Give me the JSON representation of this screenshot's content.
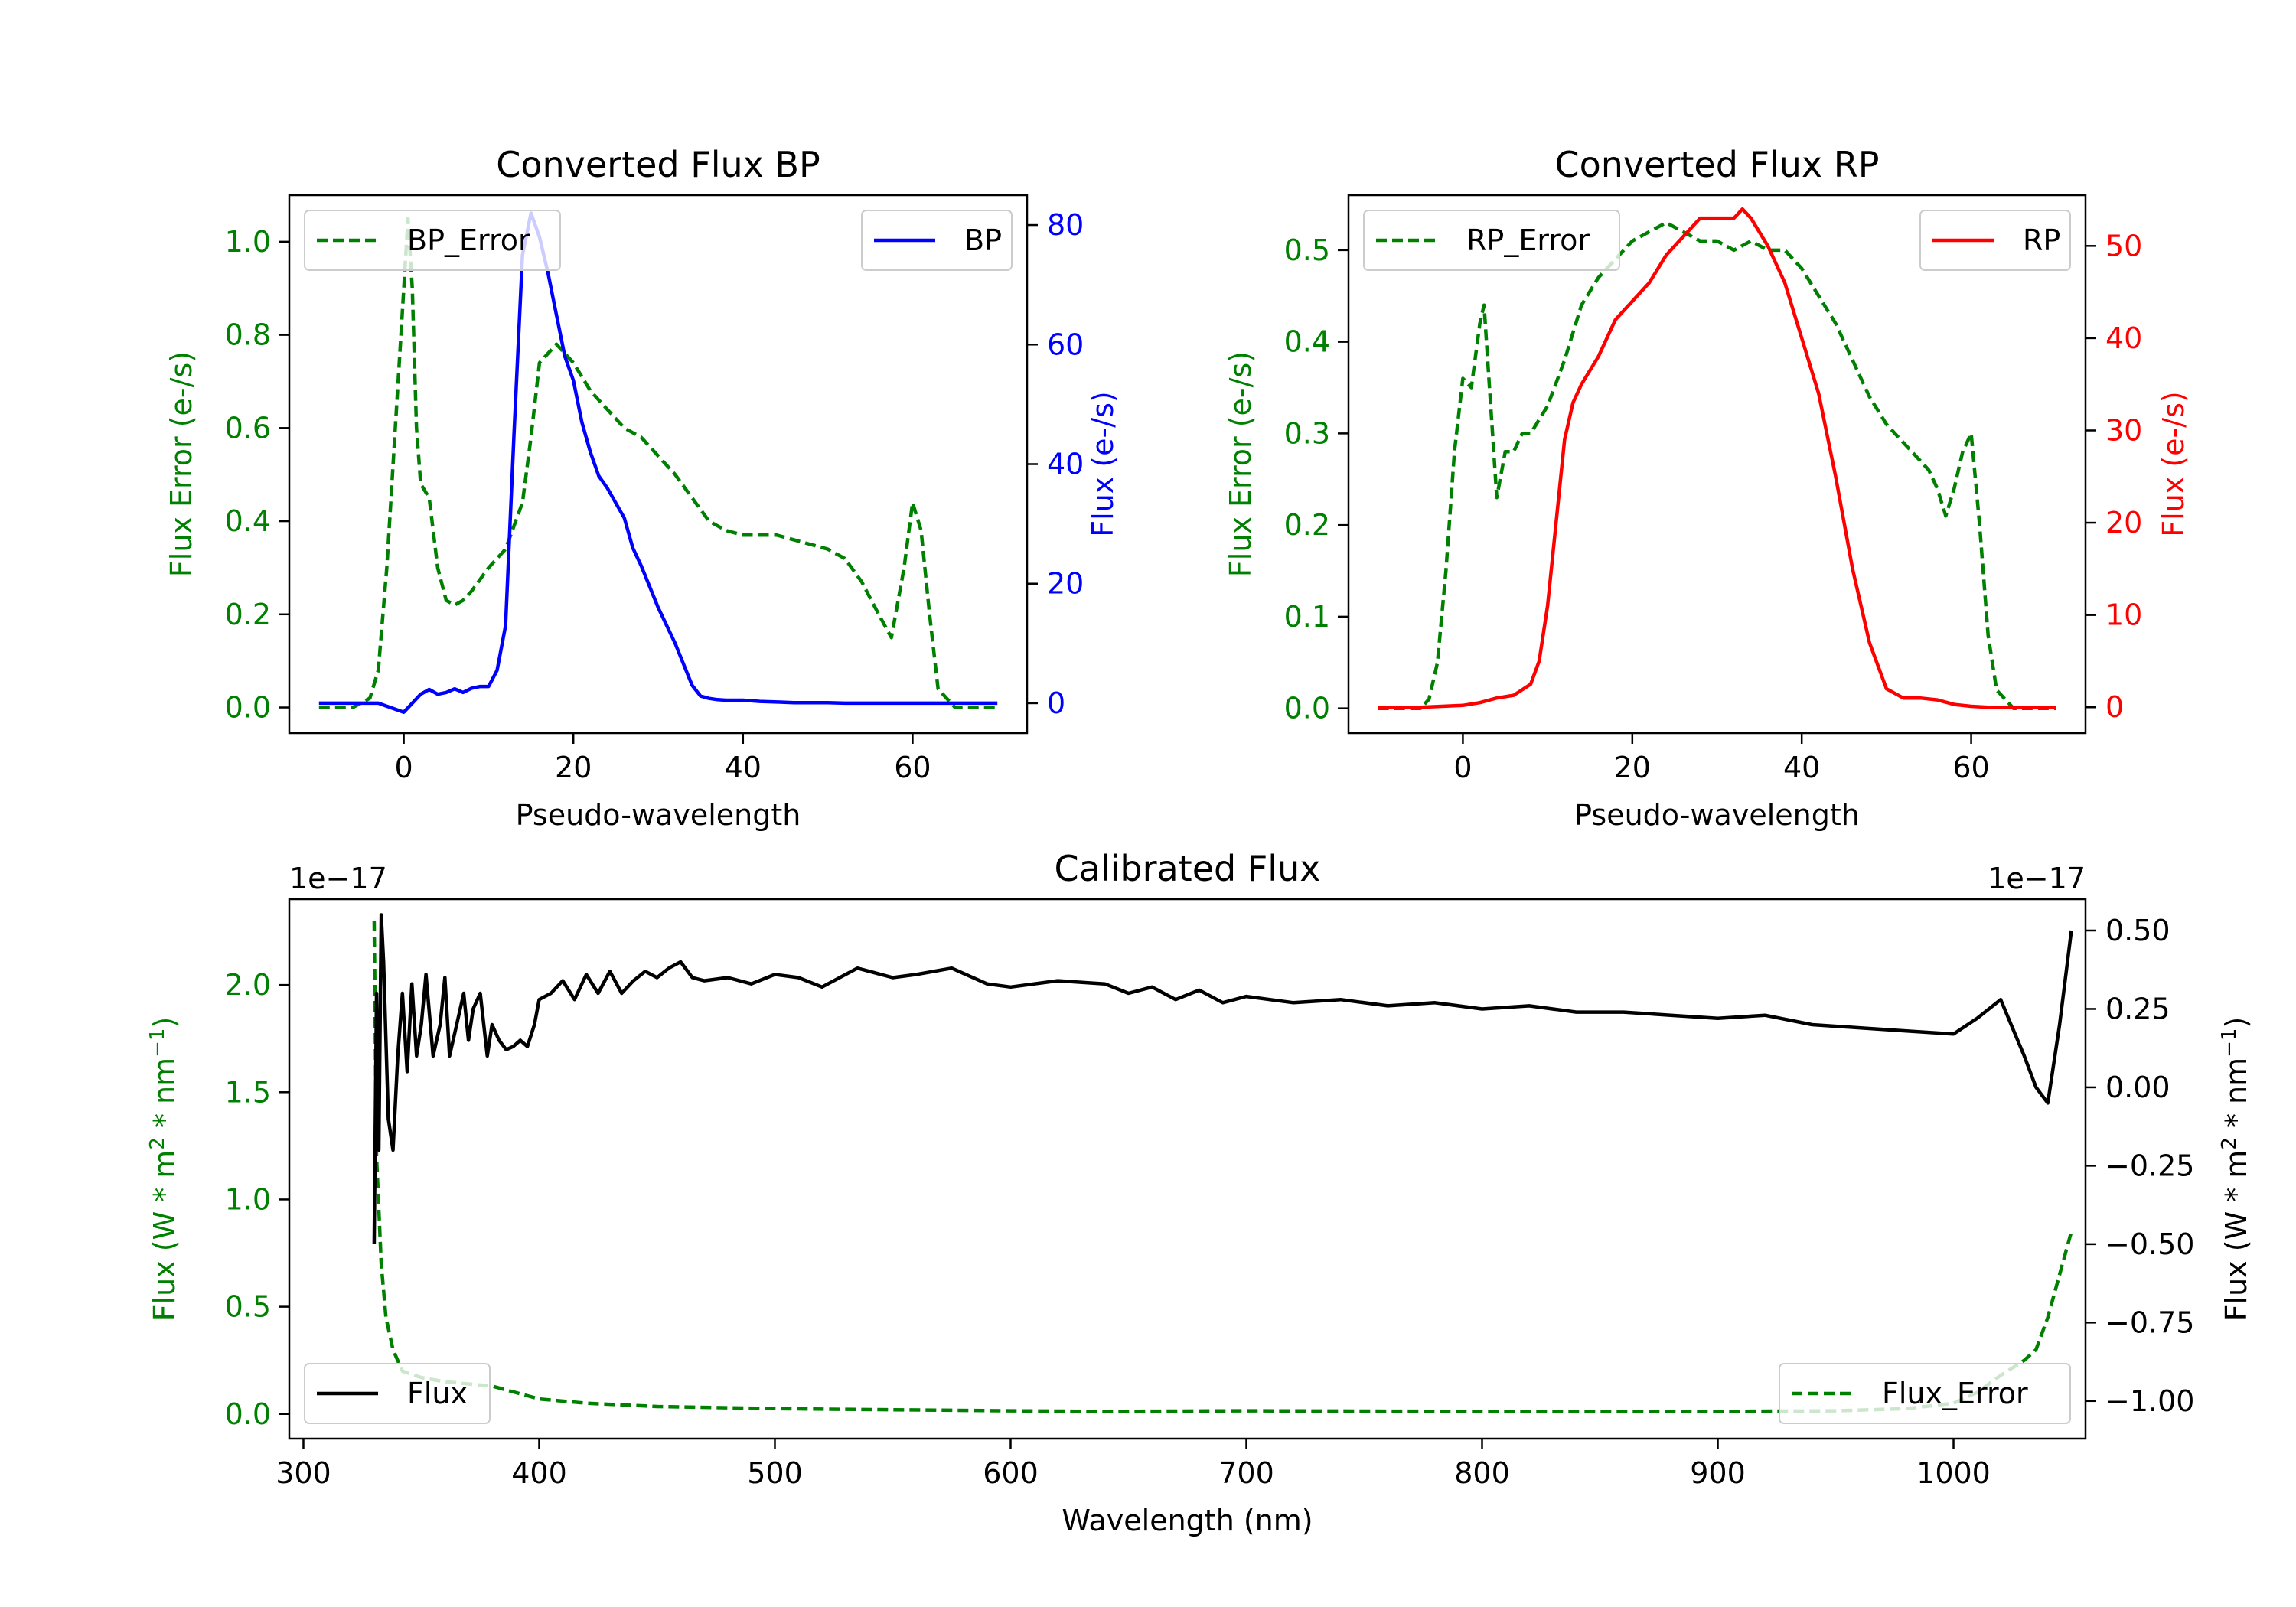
{
  "colors": {
    "green": "#008000",
    "blue": "#0000ff",
    "red": "#ff0000",
    "black": "#000000"
  },
  "chart_data": [
    {
      "type": "line",
      "title": "Converted Flux BP",
      "xlabel": "Pseudo-wavelength",
      "ylabel_left": "Flux Error (e-/s)",
      "ylabel_right": "Flux (e-/s)",
      "xlim": [
        -13.5,
        73.5
      ],
      "ylim_left": [
        -0.055,
        1.1
      ],
      "ylim_right": [
        -5,
        85
      ],
      "xticks": [
        0,
        20,
        40,
        60
      ],
      "yticks_left": [
        0.0,
        0.2,
        0.4,
        0.6,
        0.8,
        1.0
      ],
      "yticks_left_labels": [
        "0.0",
        "0.2",
        "0.4",
        "0.6",
        "0.8",
        "1.0"
      ],
      "yticks_right": [
        0,
        20,
        40,
        60,
        80
      ],
      "yticks_right_labels": [
        "0",
        "20",
        "40",
        "60",
        "80"
      ],
      "legend": [
        {
          "name": "BP_Error",
          "position": "upper-left"
        },
        {
          "name": "BP",
          "position": "upper-right"
        }
      ],
      "series": [
        {
          "name": "BP_Error",
          "axis": "left",
          "style": "dashed",
          "color": "#008000",
          "x": [
            -10,
            -6,
            -4,
            -3,
            -2,
            -1,
            0,
            0.5,
            1,
            1.5,
            2,
            3,
            4,
            5,
            6,
            7,
            8,
            10,
            12,
            14,
            15,
            16,
            18,
            20,
            22,
            24,
            26,
            28,
            30,
            32,
            34,
            36,
            38,
            40,
            42,
            44,
            46,
            48,
            50,
            52,
            54,
            56,
            57.5,
            59,
            60,
            61,
            62,
            63,
            65,
            68,
            70
          ],
          "values": [
            0.0,
            0.0,
            0.02,
            0.08,
            0.3,
            0.6,
            0.9,
            1.05,
            0.9,
            0.6,
            0.48,
            0.45,
            0.3,
            0.23,
            0.22,
            0.23,
            0.25,
            0.3,
            0.34,
            0.44,
            0.58,
            0.74,
            0.78,
            0.74,
            0.68,
            0.64,
            0.6,
            0.58,
            0.54,
            0.5,
            0.45,
            0.4,
            0.38,
            0.37,
            0.37,
            0.37,
            0.36,
            0.35,
            0.34,
            0.32,
            0.27,
            0.2,
            0.15,
            0.3,
            0.44,
            0.38,
            0.2,
            0.04,
            0.0,
            0.0,
            0.0
          ]
        },
        {
          "name": "BP",
          "axis": "right",
          "style": "solid",
          "color": "#0000ff",
          "x": [
            -10,
            -6,
            -3,
            -2,
            0,
            1,
            2,
            3,
            4,
            5,
            6,
            7,
            8,
            9,
            10,
            11,
            12,
            13,
            14,
            15,
            16,
            17,
            18,
            19,
            20,
            21,
            22,
            23,
            24,
            26,
            27,
            28,
            30,
            32,
            34,
            35,
            36,
            37,
            38,
            40,
            42,
            44,
            46,
            48,
            50,
            52,
            54,
            56,
            58,
            60,
            65,
            70
          ],
          "values": [
            0,
            0,
            0,
            -0.5,
            -1.5,
            0,
            1.5,
            2.3,
            1.5,
            1.8,
            2.4,
            1.8,
            2.5,
            2.8,
            2.8,
            5.5,
            13,
            45,
            75,
            82,
            78,
            72,
            65,
            58,
            54,
            47,
            42,
            38,
            36,
            31,
            26,
            23,
            16,
            10,
            3,
            1.2,
            0.8,
            0.6,
            0.5,
            0.5,
            0.3,
            0.2,
            0.1,
            0.1,
            0.1,
            0.0,
            0.0,
            0.0,
            0.0,
            0.0,
            0.0,
            0.0
          ]
        }
      ]
    },
    {
      "type": "line",
      "title": "Converted Flux RP",
      "xlabel": "Pseudo-wavelength",
      "ylabel_left": "Flux Error (e-/s)",
      "ylabel_right": "Flux (e-/s)",
      "xlim": [
        -13.5,
        73.5
      ],
      "ylim_left": [
        -0.027,
        0.56
      ],
      "ylim_right": [
        -2.8,
        55.5
      ],
      "xticks": [
        0,
        20,
        40,
        60
      ],
      "yticks_left": [
        0.0,
        0.1,
        0.2,
        0.3,
        0.4,
        0.5
      ],
      "yticks_left_labels": [
        "0.0",
        "0.1",
        "0.2",
        "0.3",
        "0.4",
        "0.5"
      ],
      "yticks_right": [
        0,
        10,
        20,
        30,
        40,
        50
      ],
      "yticks_right_labels": [
        "0",
        "10",
        "20",
        "30",
        "40",
        "50"
      ],
      "legend": [
        {
          "name": "RP_Error",
          "position": "upper-left"
        },
        {
          "name": "RP",
          "position": "upper-right"
        }
      ],
      "series": [
        {
          "name": "RP_Error",
          "axis": "left",
          "style": "dashed",
          "color": "#008000",
          "x": [
            -10,
            -5,
            -4,
            -3,
            -2,
            -1,
            0,
            1,
            2,
            2.5,
            3,
            3.5,
            4,
            5,
            6,
            7,
            8,
            10,
            12,
            14,
            16,
            18,
            20,
            22,
            24,
            25,
            26,
            28,
            30,
            32,
            34,
            36,
            38,
            40,
            42,
            44,
            46,
            48,
            50,
            52,
            54,
            55,
            56,
            57,
            58,
            59,
            60,
            61,
            62,
            63,
            65,
            70
          ],
          "values": [
            0.0,
            0.0,
            0.01,
            0.05,
            0.15,
            0.28,
            0.36,
            0.35,
            0.42,
            0.44,
            0.37,
            0.3,
            0.23,
            0.28,
            0.28,
            0.3,
            0.3,
            0.33,
            0.38,
            0.44,
            0.47,
            0.49,
            0.51,
            0.52,
            0.53,
            0.525,
            0.52,
            0.51,
            0.51,
            0.5,
            0.51,
            0.5,
            0.5,
            0.48,
            0.45,
            0.42,
            0.38,
            0.34,
            0.31,
            0.29,
            0.27,
            0.26,
            0.24,
            0.21,
            0.24,
            0.28,
            0.3,
            0.2,
            0.08,
            0.02,
            0.0,
            0.0
          ]
        },
        {
          "name": "RP",
          "axis": "right",
          "style": "solid",
          "color": "#ff0000",
          "x": [
            -10,
            -5,
            0,
            2,
            4,
            6,
            8,
            9,
            10,
            11,
            12,
            13,
            14,
            16,
            18,
            20,
            22,
            24,
            26,
            28,
            30,
            32,
            33,
            34,
            36,
            38,
            40,
            42,
            44,
            46,
            48,
            50,
            52,
            54,
            56,
            58,
            60,
            62,
            65,
            70
          ],
          "values": [
            0,
            0,
            0.2,
            0.5,
            1,
            1.3,
            2.5,
            5,
            11,
            20,
            29,
            33,
            35,
            38,
            42,
            44,
            46,
            49,
            51,
            53,
            53,
            53,
            54,
            53,
            50,
            46,
            40,
            34,
            25,
            15,
            7,
            2,
            1,
            1,
            0.8,
            0.3,
            0.1,
            0.0,
            0.0,
            0.0
          ]
        }
      ]
    },
    {
      "type": "line",
      "title": "Calibrated Flux",
      "xlabel": "Wavelength (nm)",
      "ylabel_left": "Flux (W * m",
      "ylabel_right": "Flux (W * m",
      "unit_tail_a": " * nm",
      "unit_exp_2": "2",
      "unit_exp_m1": "−1",
      "close_paren": ")",
      "offset_left": "1e−17",
      "offset_right": "1e−17",
      "xlim": [
        294,
        1056
      ],
      "ylim_left": [
        -0.115,
        2.4
      ],
      "ylim_right": [
        -1.12,
        0.6
      ],
      "xticks": [
        300,
        400,
        500,
        600,
        700,
        800,
        900,
        1000
      ],
      "yticks_left": [
        0.0,
        0.5,
        1.0,
        1.5,
        2.0
      ],
      "yticks_left_labels": [
        "0.0",
        "0.5",
        "1.0",
        "1.5",
        "2.0"
      ],
      "yticks_right": [
        -1.0,
        -0.75,
        -0.5,
        -0.25,
        0.0,
        0.25,
        0.5
      ],
      "yticks_right_labels": [
        "−1.00",
        "−0.75",
        "−0.50",
        "−0.25",
        "0.00",
        "0.25",
        "0.50"
      ],
      "legend": [
        {
          "name": "Flux",
          "position": "lower-left"
        },
        {
          "name": "Flux_Error",
          "position": "lower-right"
        }
      ],
      "series": [
        {
          "name": "Flux_Error",
          "axis": "left",
          "style": "dashed",
          "color": "#008000",
          "x": [
            330,
            331,
            333,
            335,
            338,
            342,
            350,
            360,
            370,
            380,
            390,
            400,
            420,
            450,
            500,
            550,
            600,
            640,
            700,
            800,
            900,
            950,
            980,
            1000,
            1010,
            1020,
            1030,
            1035,
            1040,
            1045,
            1050
          ],
          "values": [
            2.3,
            1.2,
            0.7,
            0.45,
            0.3,
            0.2,
            0.17,
            0.15,
            0.14,
            0.13,
            0.1,
            0.07,
            0.05,
            0.035,
            0.025,
            0.02,
            0.015,
            0.012,
            0.015,
            0.012,
            0.012,
            0.015,
            0.025,
            0.05,
            0.1,
            0.18,
            0.25,
            0.3,
            0.45,
            0.65,
            0.85
          ]
        },
        {
          "name": "Flux",
          "axis": "right",
          "style": "solid",
          "color": "#000000",
          "x": [
            330,
            331,
            332,
            333,
            334,
            335,
            336,
            338,
            340,
            342,
            344,
            346,
            348,
            350,
            352,
            355,
            358,
            360,
            362,
            365,
            368,
            370,
            372,
            375,
            378,
            380,
            383,
            386,
            389,
            392,
            395,
            398,
            400,
            405,
            410,
            415,
            420,
            425,
            430,
            435,
            440,
            445,
            450,
            455,
            460,
            465,
            470,
            480,
            490,
            500,
            510,
            520,
            535,
            550,
            560,
            575,
            590,
            600,
            620,
            640,
            650,
            660,
            670,
            680,
            690,
            700,
            720,
            740,
            760,
            780,
            800,
            820,
            840,
            860,
            880,
            900,
            920,
            940,
            960,
            980,
            1000,
            1010,
            1020,
            1030,
            1035,
            1040,
            1045,
            1050
          ],
          "values": [
            -0.5,
            0.3,
            -0.2,
            0.55,
            0.4,
            0.15,
            -0.1,
            -0.2,
            0.1,
            0.3,
            0.05,
            0.33,
            0.1,
            0.2,
            0.36,
            0.1,
            0.2,
            0.35,
            0.1,
            0.2,
            0.3,
            0.15,
            0.25,
            0.3,
            0.1,
            0.2,
            0.15,
            0.12,
            0.13,
            0.15,
            0.13,
            0.2,
            0.28,
            0.3,
            0.34,
            0.28,
            0.36,
            0.3,
            0.37,
            0.3,
            0.34,
            0.37,
            0.35,
            0.38,
            0.4,
            0.35,
            0.34,
            0.35,
            0.33,
            0.36,
            0.35,
            0.32,
            0.38,
            0.35,
            0.36,
            0.38,
            0.33,
            0.32,
            0.34,
            0.33,
            0.3,
            0.32,
            0.28,
            0.31,
            0.27,
            0.29,
            0.27,
            0.28,
            0.26,
            0.27,
            0.25,
            0.26,
            0.24,
            0.24,
            0.23,
            0.22,
            0.23,
            0.2,
            0.19,
            0.18,
            0.17,
            0.22,
            0.28,
            0.1,
            0.0,
            -0.05,
            0.2,
            0.5
          ]
        }
      ]
    }
  ]
}
